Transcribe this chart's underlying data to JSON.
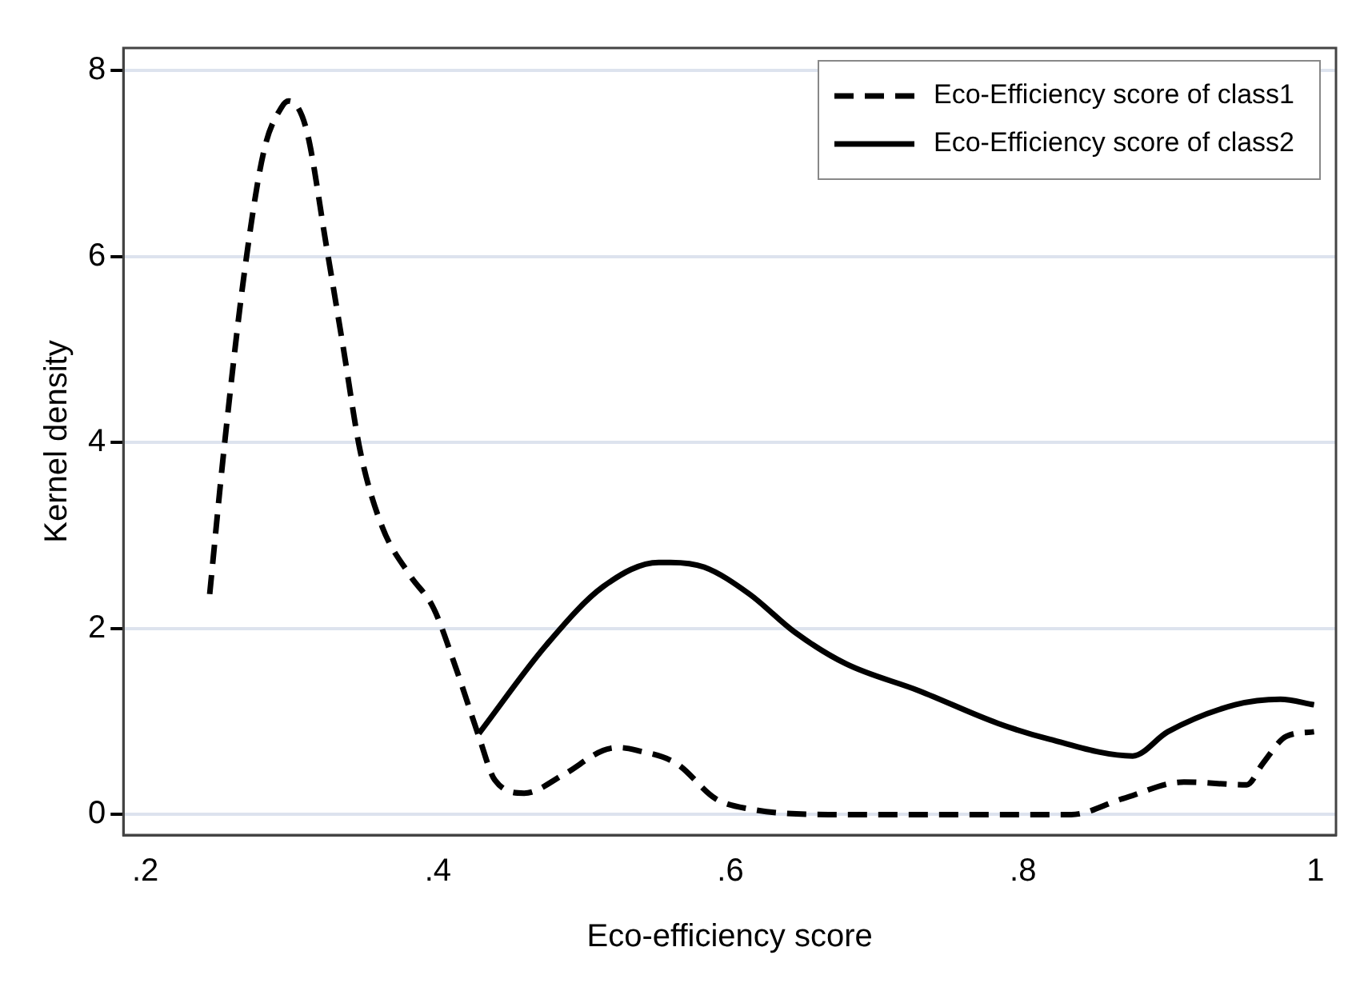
{
  "chart_data": {
    "type": "line",
    "xlabel": "Eco-efficiency score",
    "ylabel": "Kernel density",
    "xlim": [
      0.185,
      1.014
    ],
    "ylim": [
      -0.22,
      8.24
    ],
    "xticks": [
      {
        "value": 0.2,
        "label": ".2"
      },
      {
        "value": 0.4,
        "label": ".4"
      },
      {
        "value": 0.6,
        "label": ".6"
      },
      {
        "value": 0.8,
        "label": ".8"
      },
      {
        "value": 1,
        "label": "1"
      }
    ],
    "yticks": [
      0,
      2,
      4,
      6,
      8
    ],
    "grid": "y",
    "legend": "top right",
    "marker": "none",
    "series": [
      {
        "name": "Eco-Efficiency score of class1",
        "color": "#000000",
        "line_style": "dashed",
        "x": [
          0.244,
          0.254,
          0.268,
          0.281,
          0.293,
          0.298,
          0.31,
          0.324,
          0.335,
          0.347,
          0.362,
          0.381,
          0.397,
          0.412,
          0.428,
          0.439,
          0.459,
          0.486,
          0.513,
          0.524,
          0.536,
          0.563,
          0.59,
          0.613,
          0.667,
          0.833,
          0.868,
          0.91,
          0.953,
          0.964,
          0.98,
          0.999
        ],
        "values": [
          2.37,
          3.96,
          5.86,
          7.13,
          7.6,
          7.67,
          7.37,
          6.09,
          5.05,
          3.9,
          3.09,
          2.57,
          2.22,
          1.59,
          0.84,
          0.37,
          0.23,
          0.43,
          0.69,
          0.72,
          0.69,
          0.55,
          0.17,
          0.06,
          0,
          0,
          0.17,
          0.35,
          0.32,
          0.55,
          0.84,
          0.89
        ]
      },
      {
        "name": "Eco-Efficiency score of class2",
        "color": "#000000",
        "line_style": "solid",
        "x": [
          0.428,
          0.474,
          0.513,
          0.551,
          0.559,
          0.582,
          0.613,
          0.644,
          0.679,
          0.729,
          0.783,
          0.818,
          0.875,
          0.899,
          0.945,
          0.976,
          0.999
        ],
        "values": [
          0.87,
          1.82,
          2.45,
          2.71,
          2.71,
          2.66,
          2.37,
          1.96,
          1.62,
          1.33,
          0.98,
          0.81,
          0.63,
          0.89,
          1.18,
          1.24,
          1.18
        ]
      }
    ]
  }
}
